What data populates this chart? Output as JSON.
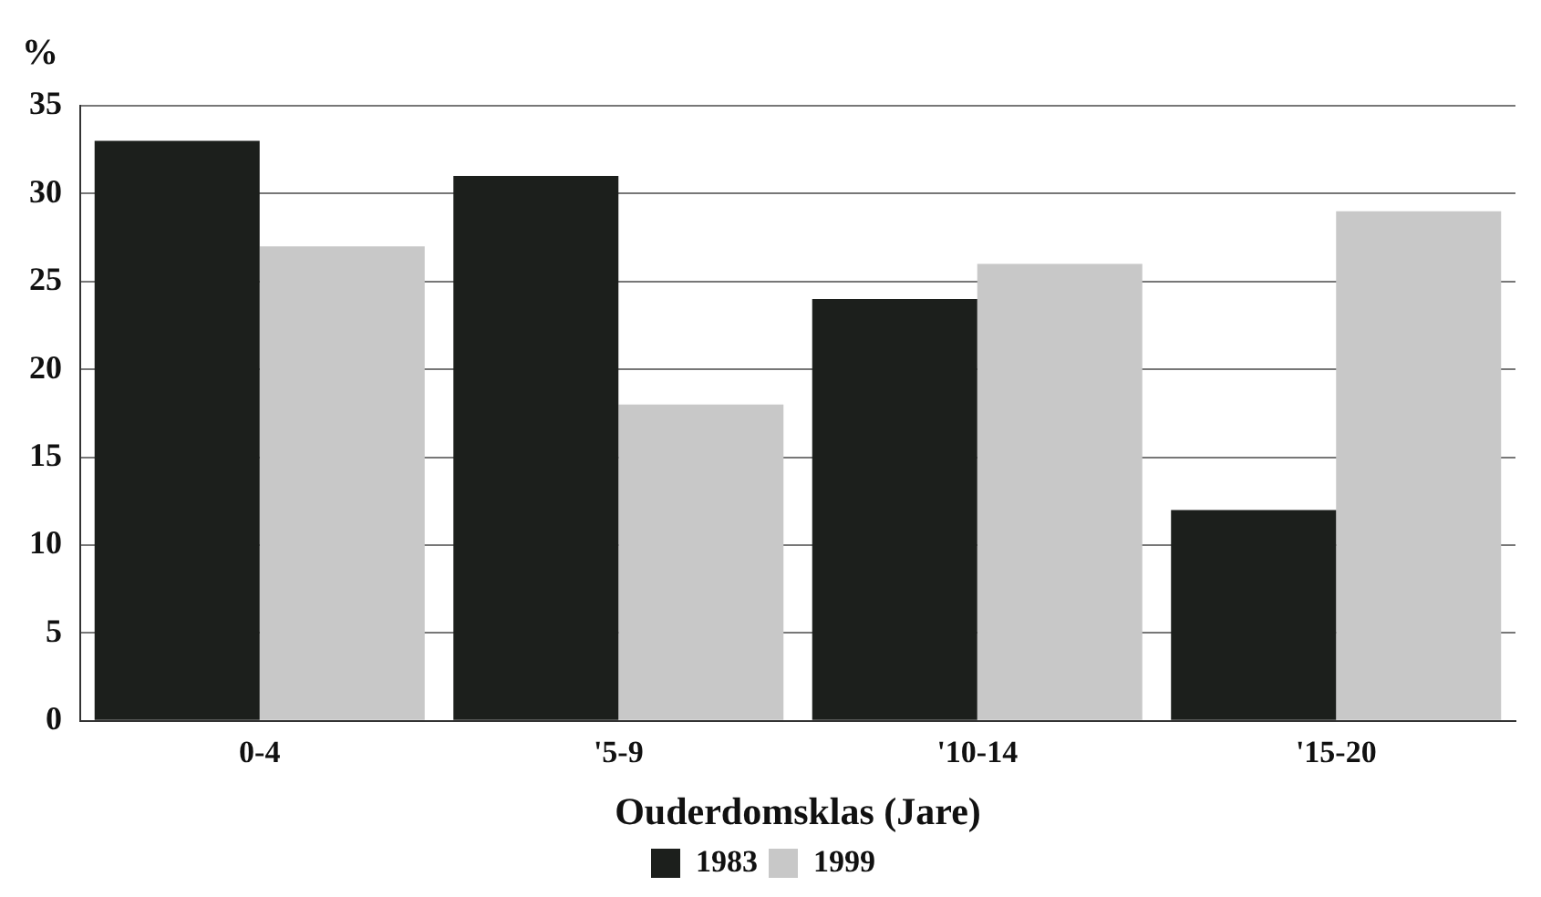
{
  "chart_data": {
    "type": "bar",
    "ylabel": "%",
    "xlabel": "Ouderdomsklas (Jare)",
    "categories": [
      "0-4",
      "'5-9",
      "'10-14",
      "'15-20"
    ],
    "series": [
      {
        "name": "1983",
        "color": "#1c1f1c",
        "values": [
          33,
          31,
          24,
          12
        ]
      },
      {
        "name": "1999",
        "color": "#c8c8c8",
        "values": [
          27,
          18,
          26,
          29
        ]
      }
    ],
    "ylim": [
      0,
      35
    ],
    "yticks": [
      0,
      5,
      10,
      15,
      20,
      25,
      30,
      35
    ],
    "grid": "y",
    "legend": "bottom"
  }
}
